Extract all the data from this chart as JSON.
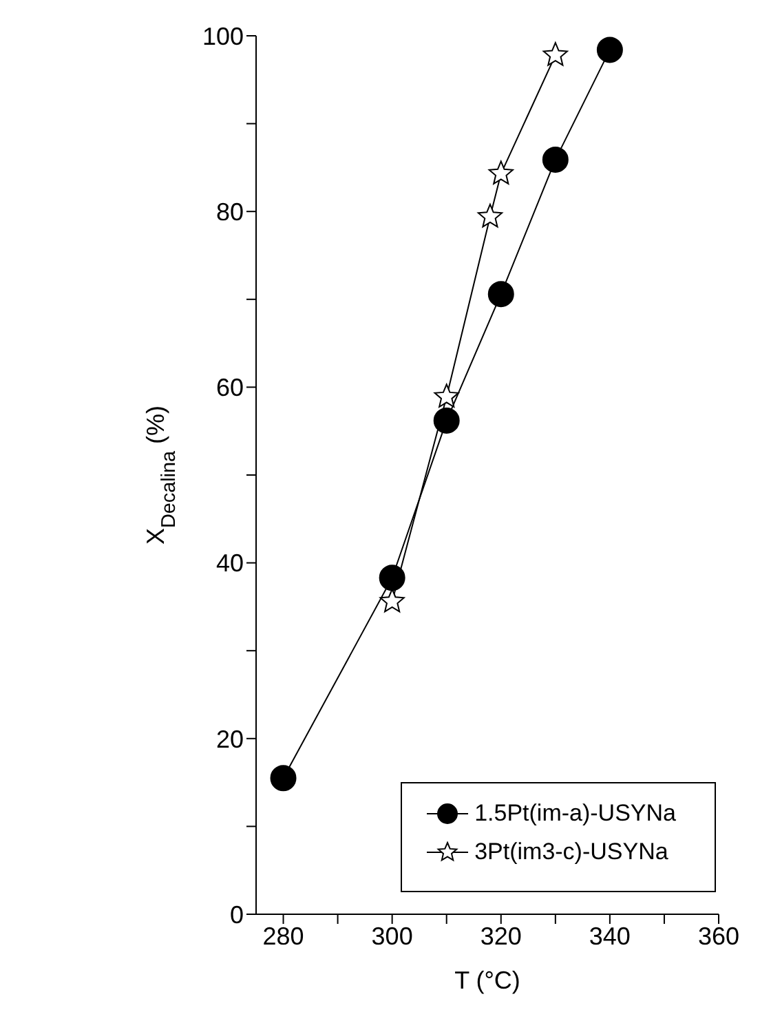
{
  "chart_data": {
    "type": "line",
    "xlabel": "T (°C)",
    "ylabel": "X$_{Decalina}$ (%)",
    "xlim": [
      275,
      360
    ],
    "xticks": [
      280,
      {
        "value": 290,
        "label": null
      },
      300,
      {
        "value": 310,
        "label": null
      },
      320,
      {
        "value": 330,
        "label": null
      },
      340,
      {
        "value": 350,
        "label": null
      },
      360
    ],
    "ylim": [
      0,
      100
    ],
    "yticks": [
      0,
      {
        "value": 10,
        "label": null
      },
      20,
      {
        "value": 30,
        "label": null
      },
      40,
      {
        "value": 50,
        "label": null
      },
      60,
      {
        "value": 70,
        "label": null
      },
      80,
      {
        "value": 90,
        "label": null
      },
      100
    ],
    "grid": false,
    "legend": "bottom right",
    "line_style": "solid",
    "series": [
      {
        "name": "1.5Pt(im-a)-USYNa",
        "color": "#000000",
        "marker": "circle",
        "x": [
          280,
          300,
          310,
          320,
          330,
          340
        ],
        "values": [
          15.5,
          38.3,
          56.2,
          70.6,
          85.9,
          98.4
        ]
      },
      {
        "name": "3Pt(im3-c)-USYNa",
        "color": "#000000",
        "marker": "star",
        "x": [
          300,
          310,
          318,
          320,
          330
        ],
        "values": [
          35.6,
          58.9,
          79.4,
          84.3,
          97.8
        ]
      }
    ]
  }
}
